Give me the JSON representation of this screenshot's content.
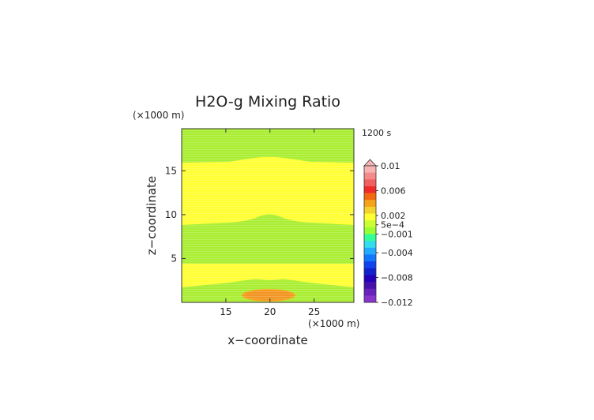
{
  "chart_data": {
    "type": "contour",
    "title": "H2O-g Mixing Ratio",
    "xlabel": "x−coordinate",
    "ylabel": "z−coordinate",
    "x_unit": "(×1000 m)",
    "y_unit": "(×1000 m)",
    "time_label": "1200 s",
    "xlim": [
      10,
      29.5
    ],
    "ylim": [
      0,
      19.8
    ],
    "x_ticks": [
      15,
      20,
      25
    ],
    "y_ticks": [
      5,
      10,
      15
    ],
    "legend_position": "right",
    "colorbar": {
      "labels": [
        "0.01",
        "0.006",
        "0.002",
        "5e−4",
        "−0.001",
        "−0.004",
        "−0.008",
        "−0.012"
      ],
      "label_values": [
        0.01,
        0.006,
        0.002,
        0.0005,
        -0.001,
        -0.004,
        -0.008,
        -0.012
      ],
      "range": [
        -0.012,
        0.01
      ],
      "colors": [
        "#f7b4b4",
        "#f58a8a",
        "#f06060",
        "#ee2a2a",
        "#f26a10",
        "#f7a21c",
        "#f2d22c",
        "#ffff33",
        "#ccff33",
        "#99ff33",
        "#33ff99",
        "#33ddee",
        "#22aaff",
        "#1177ff",
        "#1144ee",
        "#1122cc",
        "#2200bb",
        "#4411aa",
        "#6622bb",
        "#8833cc"
      ]
    },
    "regions": [
      {
        "name": "top",
        "level": "-0.001 to 0",
        "color": "#aaee33"
      },
      {
        "name": "upper-band",
        "level": "0 to 5e-4",
        "color": "#ffff33"
      },
      {
        "name": "middle-band",
        "level": "-0.001 to 0",
        "color": "#aaee33"
      },
      {
        "name": "lower-band",
        "level": "0 to 5e-4",
        "color": "#ffff33"
      },
      {
        "name": "surface",
        "level": "-0.001 to 0",
        "color": "#aaee33"
      },
      {
        "name": "surface-maximum",
        "level": "5e-4 to 0.002",
        "color": "#f7a21c",
        "center": [
          20,
          1
        ]
      }
    ]
  }
}
